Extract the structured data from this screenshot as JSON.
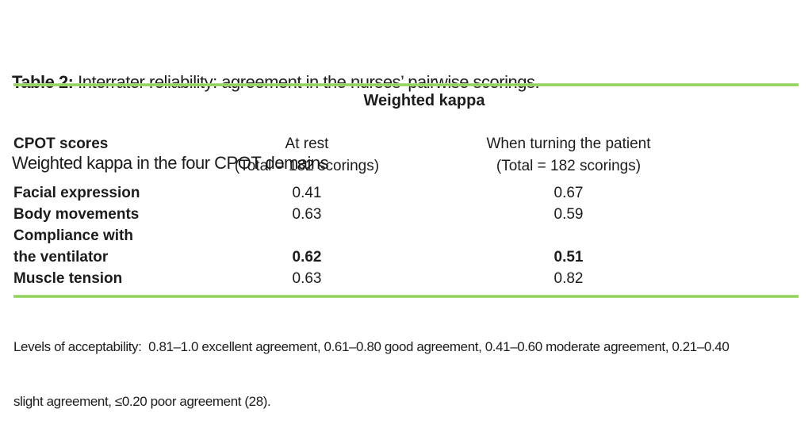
{
  "page": {
    "background": "#ffffff",
    "text_color": "#1c1c1c",
    "accent_green": "#8ed156"
  },
  "caption": {
    "label": "Table 2:",
    "line1_rest": " Interrater reliability: agreement in the nurses’ pairwise scorings.",
    "line2": "Weighted kappa in the four CPOT domains"
  },
  "table": {
    "spanner": "Weighted kappa",
    "header": {
      "rowhead": "CPOT scores",
      "at_rest": {
        "label": "At rest",
        "subline": "(Total = 182 scorings)"
      },
      "when_turning": {
        "label": "When turning the patient",
        "subline": "(Total = 182 scorings)"
      }
    },
    "rows": [
      {
        "label": "Facial expression",
        "at_rest": "0.41",
        "turning": "0.67"
      },
      {
        "label": "Body movements",
        "at_rest": "0.63",
        "turning": "0.59"
      },
      {
        "label": "Compliance with",
        "at_rest": "",
        "turning": ""
      },
      {
        "label": "the ventilator",
        "at_rest": "0.62",
        "turning": "0.51"
      },
      {
        "label": "Muscle tension",
        "at_rest": "0.63",
        "turning": "0.82"
      }
    ]
  },
  "footnote": {
    "line1": "Levels of acceptability:  0.81–1.0 excellent agreement, 0.61–0.80 good agreement, 0.41–0.60 moderate agreement, 0.21–0.40",
    "line2": "slight agreement, ≤0.20 poor agreement (28)."
  }
}
